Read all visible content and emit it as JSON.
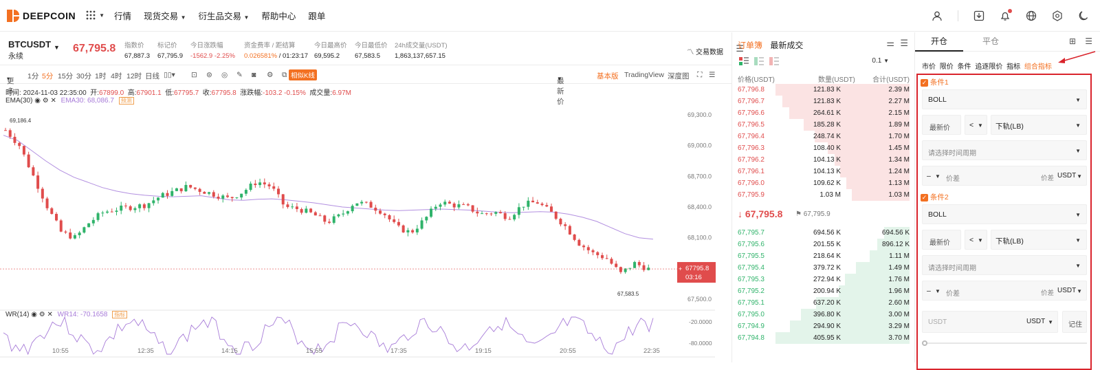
{
  "header": {
    "logo_text": "DEEPCOIN",
    "nav": [
      "行情",
      "现货交易",
      "衍生品交易",
      "帮助中心",
      "跟单"
    ],
    "icons": [
      "user-icon",
      "download-icon",
      "bell-icon",
      "globe-icon",
      "settings-icon",
      "moon-icon"
    ]
  },
  "ticker": {
    "symbol": "BTCUSDT",
    "type": "永续",
    "last_price": "67,795.8",
    "stats": [
      {
        "label": "指数价",
        "value": "67,887.3"
      },
      {
        "label": "标记价",
        "value": "67,795.9"
      },
      {
        "label": "今日涨跌幅",
        "value": "-1562.9 -2.25%"
      },
      {
        "label": "资金费率 / 距结算",
        "value": "0.026581%",
        "value2": "/ 01:23:17"
      },
      {
        "label": "今日最高价",
        "value": "69,595.2"
      },
      {
        "label": "今日最低价",
        "value": "67,583.5"
      },
      {
        "label": "24h成交量(USDT)",
        "value": "1,863,137,657.15"
      }
    ],
    "trade_data_label": "交易数据"
  },
  "toolbar": {
    "more": "更多",
    "intervals": [
      "1分",
      "5分",
      "15分",
      "30分",
      "1时",
      "4时",
      "12时",
      "日线"
    ],
    "active_interval": "5分",
    "candle_type": "相似K线",
    "latest_price": "最新价",
    "views": [
      "基本版",
      "TradingView",
      "深度图"
    ],
    "active_view": "基本版"
  },
  "chart_info": {
    "time_label": "时间:",
    "time": "2024-11-03 22:35:00",
    "open_label": "开:",
    "open": "67899.0",
    "high_label": "高:",
    "high": "67901.1",
    "low_label": "低:",
    "low": "67795.7",
    "close_label": "收:",
    "close": "67795.8",
    "change_label": "涨跌幅:",
    "change": "-103.2 -0.15%",
    "volume_label": "成交量:",
    "volume": "6.97M",
    "ema_label": "EMA(30)",
    "ema_value": "EMA30: 68,086.7",
    "ema_tag": "预测",
    "wr_label": "WR(14)",
    "wr_value": "WR14: -70.1658",
    "wr_tag": "指标"
  },
  "chart_data": {
    "type": "candlestick",
    "y_ticks": [
      69300.0,
      69000.0,
      68700.0,
      68400.0,
      68100.0,
      67800.0,
      67500.0
    ],
    "y_tick_labels": [
      "69,300.0",
      "69,000.0",
      "68,700.0",
      "68,400.0",
      "68,100.0",
      "67,800.0",
      "67,500.0"
    ],
    "x_tick_labels": [
      "10:55",
      "12:35",
      "14:15",
      "15:55",
      "17:35",
      "19:15",
      "20:55",
      "22:35"
    ],
    "ylim": [
      67400,
      69400
    ],
    "high_marker": "69,186.4",
    "low_marker": "67,583.5",
    "current_price": "67795.8",
    "countdown": "03:16",
    "wr_ticks": [
      "-20.0000",
      "-80.0000"
    ],
    "ema_points": [
      69100,
      69050,
      68950,
      68850,
      68760,
      68690,
      68640,
      68590,
      68555,
      68530,
      68515,
      68505,
      68500,
      68505,
      68510,
      68490,
      68470,
      68465,
      68475,
      68480,
      68470,
      68455,
      68440,
      68420,
      68400,
      68390,
      68380,
      68370,
      68365,
      68370,
      68375,
      68380,
      68375,
      68370,
      68360,
      68350,
      68345,
      68350,
      68355,
      68350,
      68330,
      68300,
      68260,
      68200,
      68140,
      68100,
      68086.7
    ],
    "closes": [
      69150,
      69000,
      68700,
      68400,
      68150,
      68100,
      68250,
      68350,
      68380,
      68400,
      68420,
      68500,
      68550,
      68600,
      68560,
      68520,
      68480,
      68550,
      68650,
      68600,
      68400,
      68380,
      68330,
      68250,
      68320,
      68450,
      68420,
      68350,
      68200,
      68150,
      68280,
      68450,
      68420,
      68400,
      68330,
      68350,
      68300,
      68420,
      68450,
      68350,
      68220,
      68050,
      67950,
      67900,
      67750,
      67850,
      67795.8
    ]
  },
  "orderbook": {
    "tabs": [
      "订单簿",
      "最新成交"
    ],
    "active_tab": "订单簿",
    "precision": "0.1",
    "headers": [
      "价格(USDT)",
      "数量(USDT)",
      "合计(USDT)"
    ],
    "asks": [
      {
        "p": "67,796.8",
        "q": "121.83 K",
        "t": "2.39 M",
        "d": 1.0
      },
      {
        "p": "67,796.7",
        "q": "121.83 K",
        "t": "2.27 M",
        "d": 0.95
      },
      {
        "p": "67,796.6",
        "q": "264.61 K",
        "t": "2.15 M",
        "d": 0.9
      },
      {
        "p": "67,796.5",
        "q": "185.28 K",
        "t": "1.89 M",
        "d": 0.79
      },
      {
        "p": "67,796.4",
        "q": "248.74 K",
        "t": "1.70 M",
        "d": 0.71
      },
      {
        "p": "67,796.3",
        "q": "108.40 K",
        "t": "1.45 M",
        "d": 0.61
      },
      {
        "p": "67,796.2",
        "q": "104.13 K",
        "t": "1.34 M",
        "d": 0.56
      },
      {
        "p": "67,796.1",
        "q": "104.13 K",
        "t": "1.24 M",
        "d": 0.52
      },
      {
        "p": "67,796.0",
        "q": "109.62 K",
        "t": "1.13 M",
        "d": 0.47
      },
      {
        "p": "67,795.9",
        "q": "1.03 M",
        "t": "1.03 M",
        "d": 0.43
      }
    ],
    "mid_price": "67,795.8",
    "mark_price": "67,795.9",
    "bids": [
      {
        "p": "67,795.7",
        "q": "694.56 K",
        "t": "694.56 K",
        "d": 0.19
      },
      {
        "p": "67,795.6",
        "q": "201.55 K",
        "t": "896.12 K",
        "d": 0.24
      },
      {
        "p": "67,795.5",
        "q": "218.64 K",
        "t": "1.11 M",
        "d": 0.3
      },
      {
        "p": "67,795.4",
        "q": "379.72 K",
        "t": "1.49 M",
        "d": 0.4
      },
      {
        "p": "67,795.3",
        "q": "272.94 K",
        "t": "1.76 M",
        "d": 0.48
      },
      {
        "p": "67,795.2",
        "q": "200.94 K",
        "t": "1.96 M",
        "d": 0.53
      },
      {
        "p": "67,795.1",
        "q": "637.20 K",
        "t": "2.60 M",
        "d": 0.7
      },
      {
        "p": "67,795.0",
        "q": "396.80 K",
        "t": "3.00 M",
        "d": 0.81
      },
      {
        "p": "67,794.9",
        "q": "294.90 K",
        "t": "3.29 M",
        "d": 0.89
      },
      {
        "p": "67,794.8",
        "q": "405.95 K",
        "t": "3.70 M",
        "d": 1.0
      }
    ]
  },
  "order_panel": {
    "tabs": [
      "开仓",
      "平仓"
    ],
    "active_tab": "开仓",
    "types": [
      "市价",
      "限价",
      "条件",
      "追逐限价",
      "指标",
      "组合指标"
    ],
    "active_type": "组合指标",
    "cond1": {
      "label": "条件1",
      "indicator": "BOLL",
      "price_type": "最新价",
      "op": "<",
      "band": "下轨(LB)",
      "period_placeholder": "请选择时间周期",
      "sign": "–",
      "diff_placeholder": "价差",
      "diff_label": "价差",
      "unit": "USDT"
    },
    "cond2": {
      "label": "条件2",
      "indicator": "BOLL",
      "price_type": "最新价",
      "op": "<",
      "band": "下轨(LB)",
      "period_placeholder": "请选择时间周期",
      "sign": "–",
      "diff_placeholder": "价差",
      "diff_label": "价差",
      "unit": "USDT"
    },
    "amount_placeholder": "USDT",
    "amount_unit": "USDT",
    "remember": "记住"
  }
}
